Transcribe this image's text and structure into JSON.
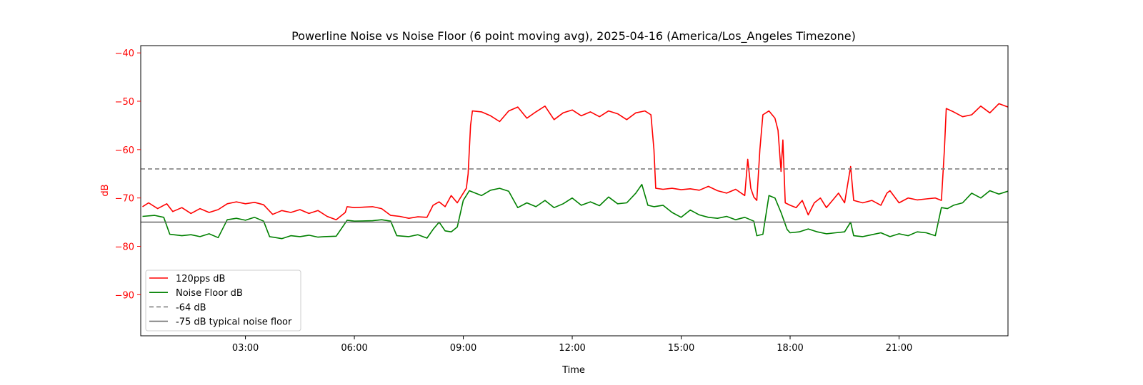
{
  "chart_data": {
    "type": "line",
    "title": "Powerline Noise vs Noise Floor (6 point moving avg), 2025-04-16 (America/Los_Angeles Timezone)",
    "xlabel": "Time",
    "ylabel": "dB",
    "xlim": [
      "00:07",
      "24:00"
    ],
    "ylim": [
      -98.5,
      -38.5
    ],
    "x_ticks": [
      "03:00",
      "06:00",
      "09:00",
      "12:00",
      "15:00",
      "18:00",
      "21:00"
    ],
    "y_ticks": [
      -40,
      -50,
      -60,
      -70,
      -80,
      -90
    ],
    "y_tick_labels": [
      "−40",
      "−50",
      "−60",
      "−70",
      "−80",
      "−90"
    ],
    "grid": false,
    "legend_position": "lower-left",
    "colors": {
      "signal": "#ff0000",
      "noise_floor": "#008000",
      "threshold": "#808080",
      "typical_floor": "#6e6e6e",
      "y_axis": "#ff0000"
    },
    "series": [
      {
        "name": "120pps dB",
        "color": "#ff0000",
        "style": "solid",
        "points": [
          [
            "00:10",
            -71.8
          ],
          [
            "00:20",
            -71.0
          ],
          [
            "00:35",
            -72.2
          ],
          [
            "00:50",
            -71.2
          ],
          [
            "01:00",
            -72.8
          ],
          [
            "01:15",
            -72.0
          ],
          [
            "01:30",
            -73.2
          ],
          [
            "01:45",
            -72.2
          ],
          [
            "02:00",
            -73.0
          ],
          [
            "02:15",
            -72.4
          ],
          [
            "02:30",
            -71.2
          ],
          [
            "02:45",
            -70.8
          ],
          [
            "03:00",
            -71.2
          ],
          [
            "03:15",
            -70.9
          ],
          [
            "03:30",
            -71.4
          ],
          [
            "03:45",
            -73.4
          ],
          [
            "04:00",
            -72.6
          ],
          [
            "04:15",
            -73.0
          ],
          [
            "04:30",
            -72.4
          ],
          [
            "04:45",
            -73.2
          ],
          [
            "05:00",
            -72.6
          ],
          [
            "05:15",
            -73.8
          ],
          [
            "05:30",
            -74.5
          ],
          [
            "05:45",
            -73.0
          ],
          [
            "05:48",
            -71.8
          ],
          [
            "06:00",
            -72.0
          ],
          [
            "06:30",
            -71.8
          ],
          [
            "06:45",
            -72.2
          ],
          [
            "07:00",
            -73.6
          ],
          [
            "07:15",
            -73.8
          ],
          [
            "07:30",
            -74.2
          ],
          [
            "07:45",
            -73.9
          ],
          [
            "08:00",
            -74.0
          ],
          [
            "08:10",
            -71.5
          ],
          [
            "08:20",
            -70.8
          ],
          [
            "08:30",
            -71.8
          ],
          [
            "08:40",
            -69.5
          ],
          [
            "08:50",
            -71.0
          ],
          [
            "09:00",
            -69.0
          ],
          [
            "09:05",
            -68.0
          ],
          [
            "09:08",
            -65.0
          ],
          [
            "09:12",
            -55.0
          ],
          [
            "09:15",
            -52.0
          ],
          [
            "09:30",
            -52.2
          ],
          [
            "09:45",
            -53.0
          ],
          [
            "10:00",
            -54.2
          ],
          [
            "10:15",
            -52.0
          ],
          [
            "10:30",
            -51.2
          ],
          [
            "10:45",
            -53.5
          ],
          [
            "11:00",
            -52.2
          ],
          [
            "11:15",
            -51.0
          ],
          [
            "11:30",
            -53.8
          ],
          [
            "11:45",
            -52.4
          ],
          [
            "12:00",
            -51.8
          ],
          [
            "12:15",
            -53.0
          ],
          [
            "12:30",
            -52.2
          ],
          [
            "12:45",
            -53.2
          ],
          [
            "13:00",
            -52.0
          ],
          [
            "13:15",
            -52.6
          ],
          [
            "13:30",
            -53.8
          ],
          [
            "13:45",
            -52.4
          ],
          [
            "14:00",
            -52.0
          ],
          [
            "14:10",
            -52.8
          ],
          [
            "14:15",
            -60.0
          ],
          [
            "14:18",
            -68.0
          ],
          [
            "14:30",
            -68.2
          ],
          [
            "14:45",
            -68.0
          ],
          [
            "15:00",
            -68.3
          ],
          [
            "15:15",
            -68.1
          ],
          [
            "15:30",
            -68.4
          ],
          [
            "15:45",
            -67.6
          ],
          [
            "16:00",
            -68.5
          ],
          [
            "16:15",
            -69.0
          ],
          [
            "16:30",
            -68.2
          ],
          [
            "16:45",
            -69.5
          ],
          [
            "16:50",
            -62.0
          ],
          [
            "16:55",
            -68.0
          ],
          [
            "17:00",
            -69.8
          ],
          [
            "17:05",
            -70.5
          ],
          [
            "17:10",
            -60.0
          ],
          [
            "17:15",
            -52.8
          ],
          [
            "17:25",
            -52.0
          ],
          [
            "17:35",
            -53.5
          ],
          [
            "17:40",
            -56.0
          ],
          [
            "17:45",
            -64.5
          ],
          [
            "17:48",
            -58.0
          ],
          [
            "17:52",
            -71.0
          ],
          [
            "18:00",
            -71.5
          ],
          [
            "18:10",
            -72.0
          ],
          [
            "18:20",
            -70.5
          ],
          [
            "18:30",
            -73.5
          ],
          [
            "18:40",
            -71.0
          ],
          [
            "18:50",
            -70.0
          ],
          [
            "19:00",
            -72.0
          ],
          [
            "19:10",
            -70.5
          ],
          [
            "19:20",
            -69.0
          ],
          [
            "19:30",
            -71.0
          ],
          [
            "19:40",
            -63.5
          ],
          [
            "19:45",
            -70.5
          ],
          [
            "20:00",
            -71.0
          ],
          [
            "20:15",
            -70.5
          ],
          [
            "20:30",
            -71.5
          ],
          [
            "20:40",
            -69.0
          ],
          [
            "20:45",
            -68.5
          ],
          [
            "21:00",
            -71.0
          ],
          [
            "21:15",
            -70.0
          ],
          [
            "21:30",
            -70.4
          ],
          [
            "21:45",
            -70.2
          ],
          [
            "22:00",
            -70.0
          ],
          [
            "22:10",
            -70.5
          ],
          [
            "22:15",
            -60.0
          ],
          [
            "22:18",
            -51.5
          ],
          [
            "22:30",
            -52.2
          ],
          [
            "22:45",
            -53.2
          ],
          [
            "23:00",
            -52.8
          ],
          [
            "23:15",
            -51.0
          ],
          [
            "23:30",
            -52.4
          ],
          [
            "23:45",
            -50.5
          ],
          [
            "24:00",
            -51.2
          ]
        ]
      },
      {
        "name": "Noise Floor dB",
        "color": "#008000",
        "style": "solid",
        "points": [
          [
            "00:10",
            -73.8
          ],
          [
            "00:30",
            -73.6
          ],
          [
            "00:45",
            -74.0
          ],
          [
            "00:55",
            -77.5
          ],
          [
            "01:15",
            -77.8
          ],
          [
            "01:30",
            -77.6
          ],
          [
            "01:45",
            -78.0
          ],
          [
            "02:00",
            -77.4
          ],
          [
            "02:15",
            -78.2
          ],
          [
            "02:30",
            -74.5
          ],
          [
            "02:45",
            -74.2
          ],
          [
            "03:00",
            -74.6
          ],
          [
            "03:15",
            -74.0
          ],
          [
            "03:30",
            -74.8
          ],
          [
            "03:40",
            -78.0
          ],
          [
            "04:00",
            -78.4
          ],
          [
            "04:15",
            -77.8
          ],
          [
            "04:30",
            -78.0
          ],
          [
            "04:45",
            -77.7
          ],
          [
            "05:00",
            -78.1
          ],
          [
            "05:10",
            -78.0
          ],
          [
            "05:30",
            -77.9
          ],
          [
            "05:48",
            -74.6
          ],
          [
            "06:00",
            -74.8
          ],
          [
            "06:30",
            -74.7
          ],
          [
            "06:45",
            -74.5
          ],
          [
            "07:00",
            -74.8
          ],
          [
            "07:10",
            -77.8
          ],
          [
            "07:30",
            -78.0
          ],
          [
            "07:45",
            -77.6
          ],
          [
            "08:00",
            -78.3
          ],
          [
            "08:10",
            -76.5
          ],
          [
            "08:20",
            -75.0
          ],
          [
            "08:30",
            -76.8
          ],
          [
            "08:40",
            -77.0
          ],
          [
            "08:50",
            -76.0
          ],
          [
            "09:00",
            -70.5
          ],
          [
            "09:10",
            -68.5
          ],
          [
            "09:30",
            -69.5
          ],
          [
            "09:45",
            -68.4
          ],
          [
            "10:00",
            -68.0
          ],
          [
            "10:15",
            -68.6
          ],
          [
            "10:30",
            -72.0
          ],
          [
            "10:45",
            -71.0
          ],
          [
            "11:00",
            -71.8
          ],
          [
            "11:15",
            -70.5
          ],
          [
            "11:30",
            -72.0
          ],
          [
            "11:45",
            -71.2
          ],
          [
            "12:00",
            -70.0
          ],
          [
            "12:15",
            -71.5
          ],
          [
            "12:30",
            -70.8
          ],
          [
            "12:45",
            -71.6
          ],
          [
            "13:00",
            -69.8
          ],
          [
            "13:15",
            -71.2
          ],
          [
            "13:30",
            -71.0
          ],
          [
            "13:45",
            -69.0
          ],
          [
            "13:55",
            -67.2
          ],
          [
            "14:05",
            -71.5
          ],
          [
            "14:15",
            -71.8
          ],
          [
            "14:30",
            -71.5
          ],
          [
            "14:45",
            -73.0
          ],
          [
            "15:00",
            -74.0
          ],
          [
            "15:15",
            -72.5
          ],
          [
            "15:30",
            -73.5
          ],
          [
            "15:45",
            -74.0
          ],
          [
            "16:00",
            -74.2
          ],
          [
            "16:15",
            -73.8
          ],
          [
            "16:30",
            -74.5
          ],
          [
            "16:45",
            -74.0
          ],
          [
            "17:00",
            -74.8
          ],
          [
            "17:05",
            -77.8
          ],
          [
            "17:15",
            -77.5
          ],
          [
            "17:25",
            -69.5
          ],
          [
            "17:35",
            -70.0
          ],
          [
            "17:45",
            -73.0
          ],
          [
            "17:55",
            -76.5
          ],
          [
            "18:00",
            -77.2
          ],
          [
            "18:15",
            -77.0
          ],
          [
            "18:30",
            -76.4
          ],
          [
            "18:45",
            -77.0
          ],
          [
            "19:00",
            -77.4
          ],
          [
            "19:15",
            -77.2
          ],
          [
            "19:30",
            -77.0
          ],
          [
            "19:40",
            -75.0
          ],
          [
            "19:45",
            -77.8
          ],
          [
            "20:00",
            -78.0
          ],
          [
            "20:15",
            -77.6
          ],
          [
            "20:30",
            -77.2
          ],
          [
            "20:45",
            -78.0
          ],
          [
            "21:00",
            -77.4
          ],
          [
            "21:15",
            -77.8
          ],
          [
            "21:30",
            -77.0
          ],
          [
            "21:45",
            -77.2
          ],
          [
            "22:00",
            -77.8
          ],
          [
            "22:10",
            -72.0
          ],
          [
            "22:20",
            -72.2
          ],
          [
            "22:30",
            -71.5
          ],
          [
            "22:45",
            -71.0
          ],
          [
            "23:00",
            -69.0
          ],
          [
            "23:15",
            -70.0
          ],
          [
            "23:30",
            -68.5
          ],
          [
            "23:45",
            -69.2
          ],
          [
            "24:00",
            -68.6
          ]
        ]
      },
      {
        "name": "-64 dB",
        "color": "#808080",
        "style": "dashed",
        "y": -64
      },
      {
        "name": "-75 dB typical noise floor",
        "color": "#6e6e6e",
        "style": "solid",
        "y": -75
      }
    ]
  }
}
